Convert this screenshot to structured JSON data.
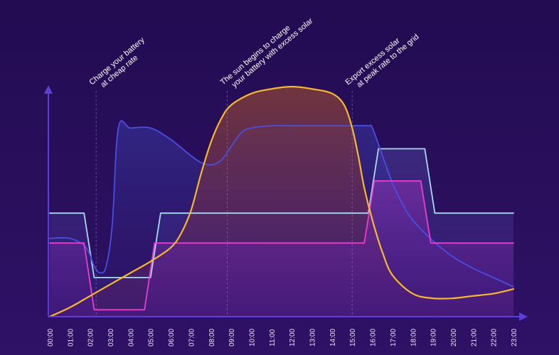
{
  "chart_data": {
    "type": "line",
    "categories": [
      "00:00",
      "01:00",
      "02:00",
      "03:00",
      "04:00",
      "05:00",
      "06:00",
      "07:00",
      "08:00",
      "09:00",
      "10:00",
      "11:00",
      "12:00",
      "13:00",
      "14:00",
      "15:00",
      "16:00",
      "17:00",
      "18:00",
      "19:00",
      "20:00",
      "21:00",
      "22:00",
      "23:00"
    ],
    "ylim": [
      0,
      100
    ],
    "grid": false,
    "legend": "none",
    "series": [
      {
        "key": "solar",
        "color": "#f5b82e",
        "x": [
          0.0,
          1.0,
          2.0,
          3.0,
          4.0,
          5.0,
          6.0,
          6.5,
          7.0,
          7.5,
          8.0,
          8.5,
          9.0,
          10.0,
          11.0,
          12.0,
          13.0,
          14.0,
          14.6,
          15.0,
          15.3,
          15.6,
          16.0,
          16.5,
          17.0,
          18.0,
          19.0,
          20.0,
          21.0,
          22.0,
          23.0
        ],
        "values": [
          0,
          4,
          9,
          14,
          19,
          24,
          30,
          36,
          46,
          62,
          76,
          86,
          92,
          97,
          99,
          100,
          99,
          97,
          92,
          82,
          70,
          56,
          42,
          28,
          18,
          10,
          8,
          8,
          9,
          10,
          12
        ]
      },
      {
        "key": "battery",
        "color": "#4a4ee0",
        "x": [
          0.0,
          1.0,
          1.8,
          2.2,
          2.5,
          2.8,
          3.1,
          3.4,
          4.0,
          5.0,
          6.0,
          7.0,
          7.5,
          8.0,
          8.5,
          9.0,
          9.5,
          10.0,
          11.0,
          12.0,
          13.0,
          14.0,
          15.0,
          15.8,
          16.0,
          16.5,
          17.0,
          17.5,
          18.0,
          19.0,
          20.0,
          21.0,
          22.0,
          23.0
        ],
        "values": [
          34,
          34,
          30,
          22,
          19,
          22,
          40,
          82,
          82,
          82,
          77,
          70,
          67,
          66,
          68,
          74,
          80,
          82,
          83,
          83,
          83,
          83,
          83,
          83,
          82,
          70,
          58,
          49,
          42,
          33,
          26,
          21,
          17,
          13
        ]
      },
      {
        "key": "peak",
        "color": "#a9d9f2",
        "x": [
          0.0,
          1.7,
          2.2,
          5.0,
          5.5,
          15.8,
          16.3,
          18.6,
          19.1,
          23.0
        ],
        "values": [
          45,
          45,
          17,
          17,
          45,
          45,
          73,
          73,
          45,
          45
        ]
      },
      {
        "key": "rate",
        "color": "#e83ed0",
        "x": [
          0.0,
          1.7,
          2.2,
          4.7,
          5.2,
          15.6,
          16.1,
          18.4,
          18.9,
          23.0
        ],
        "values": [
          32,
          32,
          3,
          3,
          32,
          32,
          59,
          59,
          32,
          32
        ]
      }
    ],
    "annotations": [
      {
        "hour": 2.3,
        "lines": [
          "Charge your battery",
          "at cheap rate"
        ]
      },
      {
        "hour": 8.8,
        "lines": [
          "The sun begins to charge",
          "your battery with excess solar"
        ]
      },
      {
        "hour": 15.0,
        "lines": [
          "Export excess solar",
          "at peak rate to the grid"
        ]
      }
    ]
  }
}
